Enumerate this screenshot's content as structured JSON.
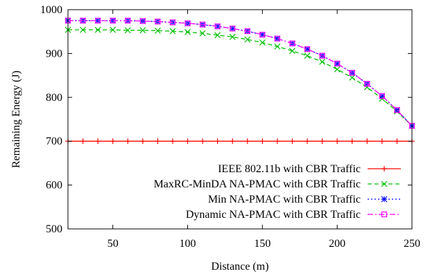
{
  "chart_data": {
    "type": "line",
    "xlabel": "Distance (m)",
    "ylabel": "Remaining Energy (J)",
    "xlim": [
      20,
      250
    ],
    "ylim": [
      500,
      1000
    ],
    "x_ticks": [
      50,
      100,
      150,
      200,
      250
    ],
    "y_ticks": [
      500,
      600,
      700,
      800,
      900,
      1000
    ],
    "x_tick_labels": [
      "50",
      "100",
      "150",
      "200",
      "250"
    ],
    "y_tick_labels": [
      "500",
      "600",
      "700",
      "800",
      "900",
      "1000"
    ],
    "legend_position": "bottom-right",
    "grid": false,
    "x": [
      20,
      30,
      40,
      50,
      60,
      70,
      80,
      90,
      100,
      110,
      120,
      130,
      140,
      150,
      160,
      170,
      180,
      190,
      200,
      210,
      220,
      230,
      240,
      250
    ],
    "series": [
      {
        "name": "IEEE 802.11b with CBR Traffic",
        "color": "#ff0000",
        "dash": "solid",
        "marker": "plus",
        "values": [
          700,
          700,
          700,
          700,
          700,
          700,
          700,
          700,
          700,
          700,
          700,
          700,
          700,
          700,
          700,
          700,
          700,
          700,
          700,
          700,
          700,
          700,
          700,
          700
        ]
      },
      {
        "name": "MaxRC-MinDA NA-PMAC with CBR Traffic",
        "color": "#00c000",
        "dash": "dashed",
        "marker": "x",
        "values": [
          954,
          954,
          954,
          954,
          953,
          953,
          952,
          951,
          949,
          946,
          942,
          938,
          932,
          925,
          916,
          906,
          895,
          881,
          864,
          845,
          823,
          797,
          768,
          735
        ]
      },
      {
        "name": "Min NA-PMAC with CBR Traffic",
        "color": "#0000ff",
        "dash": "dotted",
        "marker": "star",
        "values": [
          975,
          975,
          975,
          975,
          975,
          974,
          973,
          971,
          969,
          966,
          962,
          957,
          951,
          943,
          934,
          923,
          910,
          895,
          877,
          856,
          831,
          803,
          771,
          735
        ]
      },
      {
        "name": "Dynamic NA-PMAC with CBR Traffic",
        "color": "#ff00ff",
        "dash": "dashdot",
        "marker": "square",
        "values": [
          975,
          975,
          975,
          975,
          975,
          974,
          973,
          971,
          969,
          966,
          962,
          957,
          951,
          943,
          934,
          923,
          910,
          895,
          877,
          856,
          831,
          803,
          771,
          735
        ]
      }
    ]
  }
}
